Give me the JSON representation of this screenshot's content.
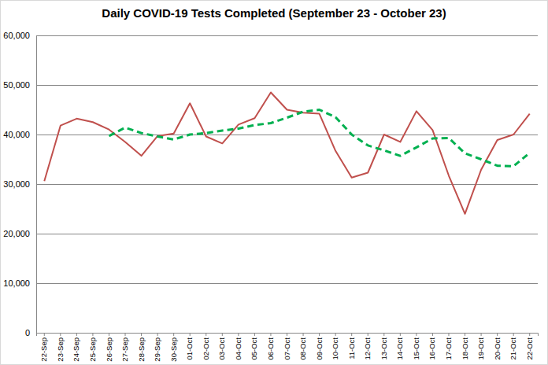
{
  "chart_data": {
    "type": "line",
    "title": "Daily COVID-19 Tests Completed (September 23 - October 23)",
    "categories": [
      "22-Sep",
      "23-Sep",
      "24-Sep",
      "25-Sep",
      "26-Sep",
      "27-Sep",
      "28-Sep",
      "29-Sep",
      "30-Sep",
      "01-Oct",
      "02-Oct",
      "03-Oct",
      "04-Oct",
      "05-Oct",
      "06-Oct",
      "07-Oct",
      "08-Oct",
      "09-Oct",
      "10-Oct",
      "11-Oct",
      "12-Oct",
      "13-Oct",
      "14-Oct",
      "15-Oct",
      "16-Oct",
      "17-Oct",
      "18-Oct",
      "19-Oct",
      "20-Oct",
      "21-Oct",
      "22-Oct"
    ],
    "series": [
      {
        "color": "#c0504d",
        "line_style": "solid",
        "values": [
          30600,
          41800,
          43200,
          42500,
          41000,
          38500,
          35700,
          39700,
          40200,
          46300,
          39600,
          38200,
          42000,
          43300,
          48500,
          45000,
          44400,
          44200,
          36700,
          31300,
          32300,
          40000,
          38500,
          44700,
          40900,
          31700,
          24000,
          32900,
          38900,
          40000,
          44200
        ]
      },
      {
        "color": "#00b050",
        "line_style": "dashed",
        "values": [
          null,
          null,
          null,
          null,
          39700,
          41400,
          40300,
          39600,
          39000,
          40000,
          40300,
          40800,
          41200,
          41900,
          42300,
          43400,
          44600,
          45000,
          43500,
          40000,
          37800,
          36800,
          35700,
          37400,
          39200,
          39300,
          36200,
          35000,
          33700,
          33600,
          36300
        ]
      }
    ],
    "ylim": [
      0,
      60000
    ],
    "yticks": [
      0,
      {
        "value": 10000,
        "label": "10,000"
      },
      {
        "value": 20000,
        "label": "20,000"
      },
      {
        "value": 30000,
        "label": "30,000"
      },
      {
        "value": 40000,
        "label": "40,000"
      },
      {
        "value": 50000,
        "label": "50,000"
      },
      {
        "value": 60000,
        "label": "60,000"
      }
    ],
    "grid": true
  }
}
